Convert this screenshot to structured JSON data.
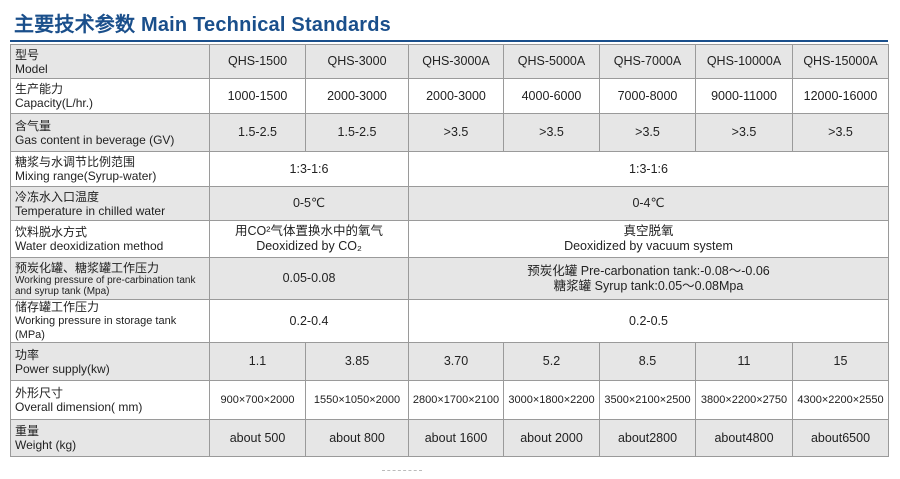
{
  "title": "主要技术参数 Main Technical Standards",
  "models": [
    "QHS-1500",
    "QHS-3000",
    "QHS-3000A",
    "QHS-5000A",
    "QHS-7000A",
    "QHS-10000A",
    "QHS-15000A"
  ],
  "rows": {
    "model": {
      "cn": "型号",
      "en": "Model"
    },
    "capacity": {
      "cn": "生产能力",
      "en": "Capacity(L/hr.)",
      "values": [
        "1000-1500",
        "2000-3000",
        "2000-3000",
        "4000-6000",
        "7000-8000",
        "9000-11000",
        "12000-16000"
      ]
    },
    "gas": {
      "cn": "含气量",
      "en": "Gas content in beverage (GV)",
      "values": [
        "1.5-2.5",
        "1.5-2.5",
        ">3.5",
        ">3.5",
        ">3.5",
        ">3.5",
        ">3.5"
      ]
    },
    "mixing": {
      "cn": "糖浆与水调节比例范围",
      "en": "Mixing range(Syrup-water)",
      "left": "1:3-1:6",
      "right": "1:3-1:6"
    },
    "chilled": {
      "cn": "冷冻水入口温度",
      "en": "Temperature in chilled water",
      "left": "0-5℃",
      "right": "0-4℃"
    },
    "deox": {
      "cn": "饮料脱水方式",
      "en": "Water deoxidization method",
      "left_cn": "用CO²气体置换水中的氧气",
      "left_en": "Deoxidized by CO₂",
      "right_cn": "真空脱氧",
      "right_en": "Deoxidized by vacuum system"
    },
    "precarb": {
      "cn": "预炭化罐、糖浆罐工作压力",
      "en": "Working pressure of pre-carbination tank  and syrup tank (Mpa)",
      "left": "0.05-0.08",
      "right_1": "预炭化罐 Pre-carbonation tank:-0.08～-0.06",
      "right_2": "糖浆罐 Syrup tank:0.05～0.08Mpa"
    },
    "storage": {
      "cn": "储存罐工作压力",
      "en": "Working pressure in storage tank (MPa)",
      "left": "0.2-0.4",
      "right": "0.2-0.5"
    },
    "power": {
      "cn": "功率",
      "en": "Power supply(kw)",
      "values": [
        "1.1",
        "3.85",
        "3.70",
        "5.2",
        "8.5",
        "11",
        "15"
      ]
    },
    "dimension": {
      "cn": "外形尺寸",
      "en": "Overall dimension( mm)",
      "values": [
        "900×700×2000",
        "1550×1050×2000",
        "2800×1700×2100",
        "3000×1800×2200",
        "3500×2100×2500",
        "3800×2200×2750",
        "4300×2200×2550"
      ]
    },
    "weight": {
      "cn": "重量",
      "en": "Weight (kg)",
      "values": [
        "about 500",
        "about 800",
        "about 1600",
        "about 2000",
        "about2800",
        "about4800",
        "about6500"
      ]
    }
  },
  "colors": {
    "title": "#1a4f8b",
    "shade": "#e6e6e6",
    "border": "#9a9a9a"
  }
}
